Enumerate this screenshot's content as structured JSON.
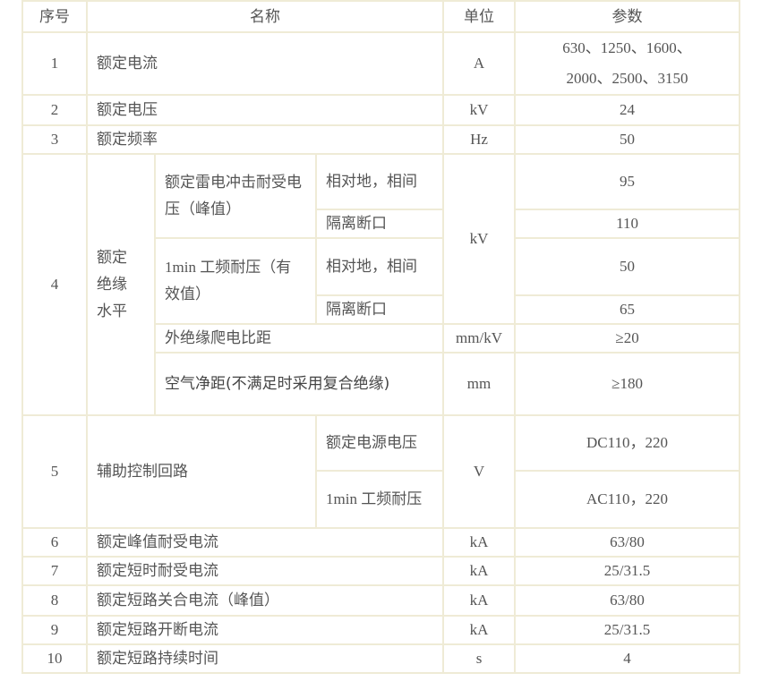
{
  "headers": [
    "序号",
    "名称",
    "单位",
    "参数"
  ],
  "rows": {
    "r1": {
      "no": "1",
      "name": "额定电流",
      "unit": "A",
      "value_line1": "630、1250、1600、",
      "value_line2": "2000、2500、3150"
    },
    "r2": {
      "no": "2",
      "name": "额定电压",
      "unit": "kV",
      "value": "24"
    },
    "r3": {
      "no": "3",
      "name": "额定频率",
      "unit": "Hz",
      "value": "50"
    },
    "r4": {
      "no": "4",
      "name": "额定绝缘水平",
      "unit": "kV",
      "lightning": "额定雷电冲击耐受电压（峰值）",
      "lightning_ground": "相对地，相间",
      "lightning_ground_value": "95",
      "lightning_iso": "隔离断口",
      "lightning_iso_value": "110",
      "power": "1min 工频耐压（有效值）",
      "power_ground": "相对地，相间",
      "power_ground_value": "50",
      "power_iso": "隔离断口",
      "power_iso_value": "65",
      "creepage": "外绝缘爬电比距",
      "creepage_unit": "mm/kV",
      "creepage_value": "≥20",
      "air": "空气净距(不满足时采用复合绝缘)",
      "air_unit": "mm",
      "air_value": "≥180"
    },
    "r5": {
      "no": "5",
      "name": "辅助控制回路",
      "unit": "V",
      "sub1": "额定电源电压",
      "sub1_value": "DC110，220",
      "sub2": "1min 工频耐压",
      "sub2_value": "AC110，220"
    },
    "r6": {
      "no": "6",
      "name": "额定峰值耐受电流",
      "unit": "kA",
      "value": "63/80"
    },
    "r7": {
      "no": "7",
      "name": "额定短时耐受电流",
      "unit": "kA",
      "value": "25/31.5"
    },
    "r8": {
      "no": "8",
      "name": "额定短路关合电流（峰值）",
      "unit": "kA",
      "value": "63/80"
    },
    "r9": {
      "no": "9",
      "name": "额定短路开断电流",
      "unit": "kA",
      "value": "25/31.5"
    },
    "r10": {
      "no": "10",
      "name": "额定短路持续时间",
      "unit": "s",
      "value": "4"
    }
  }
}
